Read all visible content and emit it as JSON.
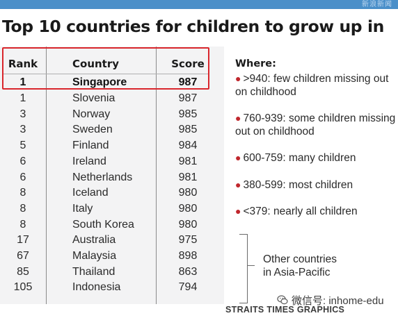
{
  "header_bar": {
    "text": "新浪新闻"
  },
  "title": "Top 10 countries for children to grow up in",
  "table": {
    "columns": [
      "Rank",
      "Country",
      "Score"
    ],
    "rows": [
      {
        "rank": "1",
        "country": "Singapore",
        "score": "987"
      },
      {
        "rank": "1",
        "country": "Slovenia",
        "score": "987"
      },
      {
        "rank": "3",
        "country": "Norway",
        "score": "985"
      },
      {
        "rank": "3",
        "country": "Sweden",
        "score": "985"
      },
      {
        "rank": "5",
        "country": "Finland",
        "score": "984"
      },
      {
        "rank": "6",
        "country": "Ireland",
        "score": "981"
      },
      {
        "rank": "6",
        "country": "Netherlands",
        "score": "981"
      },
      {
        "rank": "8",
        "country": "Iceland",
        "score": "980"
      },
      {
        "rank": "8",
        "country": "Italy",
        "score": "980"
      },
      {
        "rank": "8",
        "country": "South Korea",
        "score": "980"
      },
      {
        "rank": "17",
        "country": "Australia",
        "score": "975"
      },
      {
        "rank": "67",
        "country": "Malaysia",
        "score": "898"
      },
      {
        "rank": "85",
        "country": "Thailand",
        "score": "863"
      },
      {
        "rank": "105",
        "country": "Indonesia",
        "score": "794"
      }
    ]
  },
  "legend": {
    "title": "Where:",
    "items": [
      ">940: few children missing out on childhood",
      "760-939: some children missing out on childhood",
      "600-759: many children",
      "380-599: most children",
      "<379: nearly all children"
    ]
  },
  "other_note": {
    "line1": "Other countries",
    "line2": "in Asia-Pacific"
  },
  "watermark": "微信号: inhome-edu",
  "credit": "STRAITS TIMES GRAPHICS",
  "colors": {
    "accent_red": "#d9262c",
    "bullet_red": "#c0272d",
    "table_bg": "#f3f3f4",
    "topbar": "#4a8fc9"
  }
}
